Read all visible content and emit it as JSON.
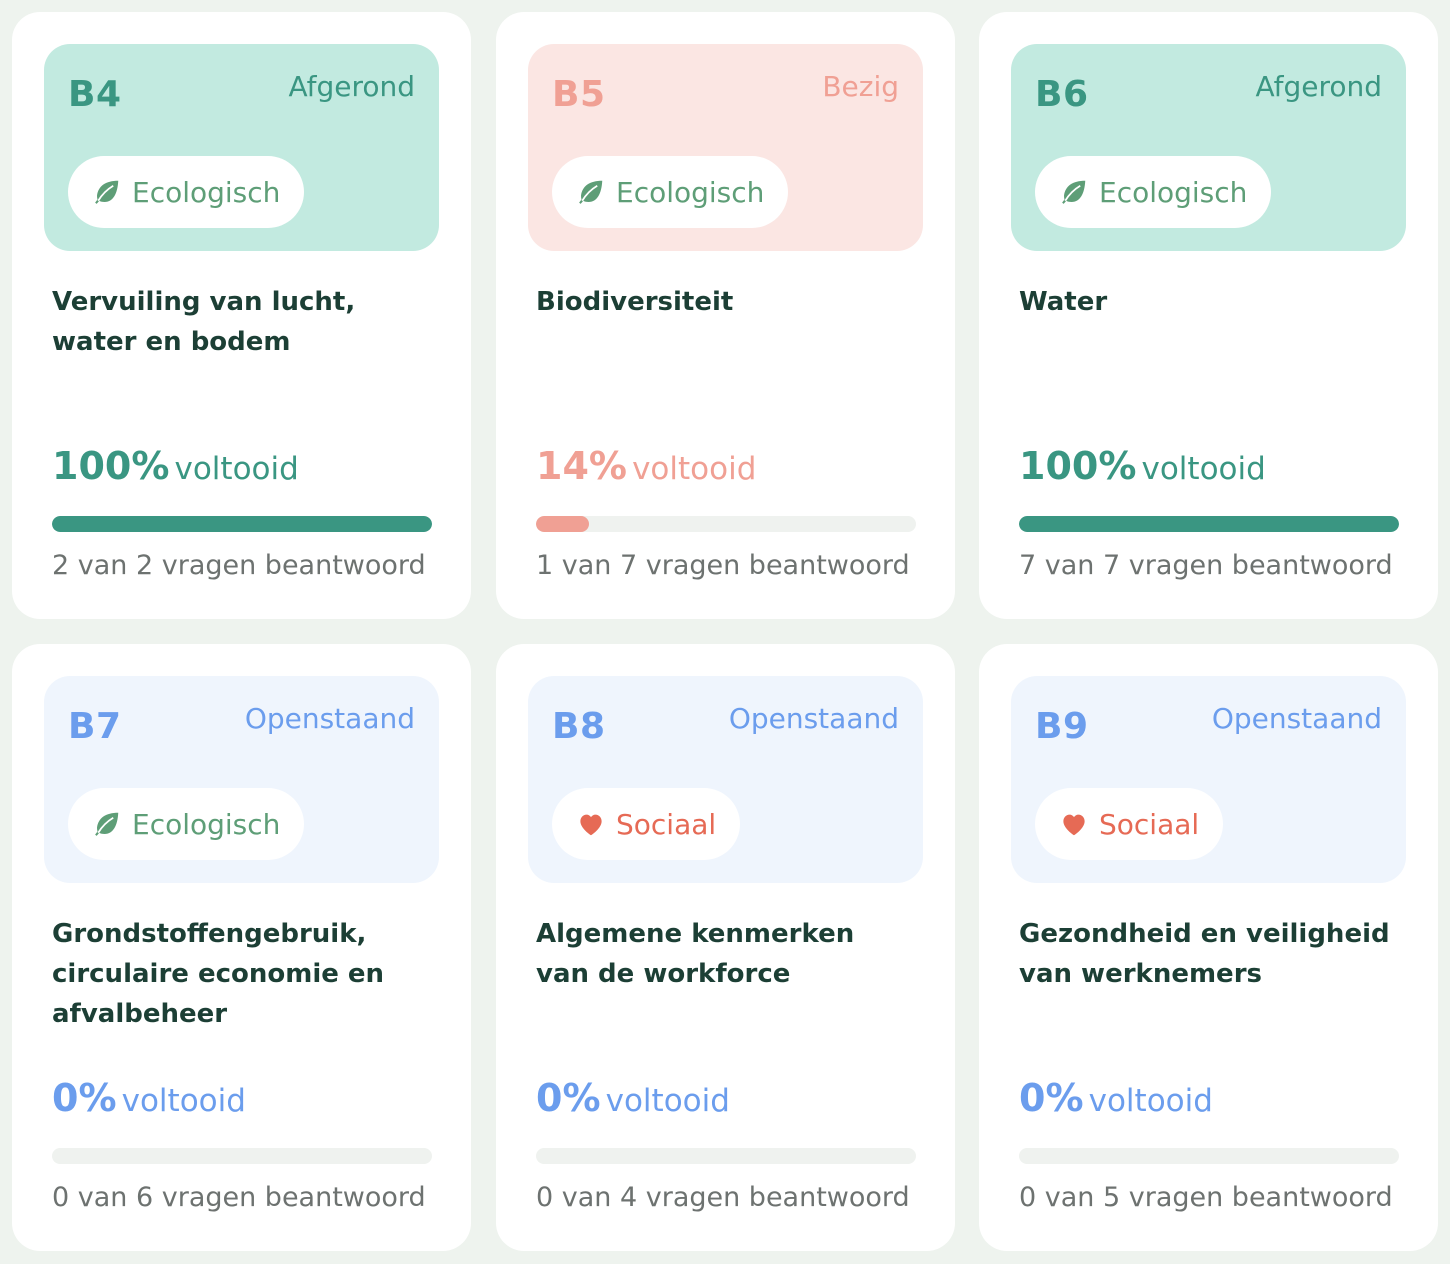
{
  "colors": {
    "completed": "#3a9682",
    "in_progress": "#f0a094",
    "open": "#6b9ded",
    "ecological": "#5e9e77",
    "social": "#e66a55"
  },
  "cards": [
    {
      "code": "B4",
      "status": "Afgerond",
      "status_key": "green",
      "category": "Ecologisch",
      "category_icon": "leaf-icon",
      "title": "Vervuiling van lucht, water en bodem",
      "percent": "100%",
      "percent_label": "voltooid",
      "progress": 1.0,
      "answered": "2 van 2 vragen beantwoord"
    },
    {
      "code": "B5",
      "status": "Bezig",
      "status_key": "pink",
      "category": "Ecologisch",
      "category_icon": "leaf-icon",
      "title": "Biodiversiteit",
      "percent": "14%",
      "percent_label": "voltooid",
      "progress": 0.14,
      "answered": "1 van 7 vragen beantwoord"
    },
    {
      "code": "B6",
      "status": "Afgerond",
      "status_key": "green",
      "category": "Ecologisch",
      "category_icon": "leaf-icon",
      "title": "Water",
      "percent": "100%",
      "percent_label": "voltooid",
      "progress": 1.0,
      "answered": "7 van 7 vragen beantwoord"
    },
    {
      "code": "B7",
      "status": "Openstaand",
      "status_key": "blue",
      "category": "Ecologisch",
      "category_icon": "leaf-icon",
      "title": "Grondstoffengebruik, circulaire economie en afvalbeheer",
      "percent": "0%",
      "percent_label": "voltooid",
      "progress": 0,
      "answered": "0 van 6 vragen beantwoord"
    },
    {
      "code": "B8",
      "status": "Openstaand",
      "status_key": "blue",
      "category": "Sociaal",
      "category_icon": "heart-icon",
      "title": "Algemene kenmerken van de workforce",
      "percent": "0%",
      "percent_label": "voltooid",
      "progress": 0,
      "answered": "0 van 4 vragen beantwoord"
    },
    {
      "code": "B9",
      "status": "Openstaand",
      "status_key": "blue",
      "category": "Sociaal",
      "category_icon": "heart-icon",
      "title": "Gezondheid en veiligheid van werknemers",
      "percent": "0%",
      "percent_label": "voltooid",
      "progress": 0,
      "answered": "0 van 5 vragen beantwoord"
    }
  ]
}
